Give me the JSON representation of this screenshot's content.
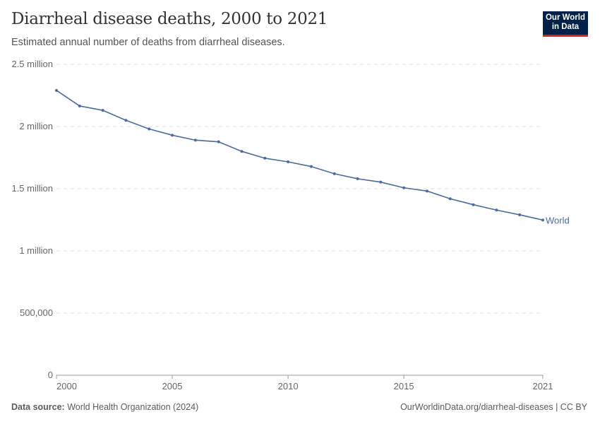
{
  "header": {
    "title": "Diarrheal disease deaths, 2000 to 2021",
    "subtitle": "Estimated annual number of deaths from diarrheal diseases.",
    "logo_text": "Our World in Data"
  },
  "footer": {
    "source_label": "Data source:",
    "source": "World Health Organization (2024)",
    "url": "OurWorldinData.org/diarrheal-diseases | CC BY"
  },
  "chart_data": {
    "type": "line",
    "title": "Diarrheal disease deaths, 2000 to 2021",
    "subtitle": "Estimated annual number of deaths from diarrheal diseases.",
    "xlim": [
      2000,
      2021
    ],
    "ylim": [
      0,
      2500000
    ],
    "x_ticks": [
      {
        "v": 2000,
        "label": "2000"
      },
      {
        "v": 2005,
        "label": "2005"
      },
      {
        "v": 2010,
        "label": "2010"
      },
      {
        "v": 2015,
        "label": "2015"
      },
      {
        "v": 2021,
        "label": "2021"
      }
    ],
    "y_ticks": [
      {
        "v": 0,
        "label": "0"
      },
      {
        "v": 500000,
        "label": "500,000"
      },
      {
        "v": 1000000,
        "label": "1 million"
      },
      {
        "v": 1500000,
        "label": "1.5 million"
      },
      {
        "v": 2000000,
        "label": "2 million"
      },
      {
        "v": 2500000,
        "label": "2.5 million"
      }
    ],
    "grid": "horizontal dashed",
    "series": [
      {
        "name": "World",
        "color": "#4c6a9c",
        "x": [
          2000,
          2001,
          2002,
          2003,
          2004,
          2005,
          2006,
          2007,
          2008,
          2009,
          2010,
          2011,
          2012,
          2013,
          2014,
          2015,
          2016,
          2017,
          2018,
          2019,
          2020,
          2021
        ],
        "y": [
          2290000,
          2165000,
          2130000,
          2050000,
          1980000,
          1930000,
          1890000,
          1877000,
          1800000,
          1745000,
          1716000,
          1678000,
          1620000,
          1580000,
          1553000,
          1507000,
          1481000,
          1419000,
          1371000,
          1328000,
          1290000,
          1248000
        ]
      }
    ]
  }
}
